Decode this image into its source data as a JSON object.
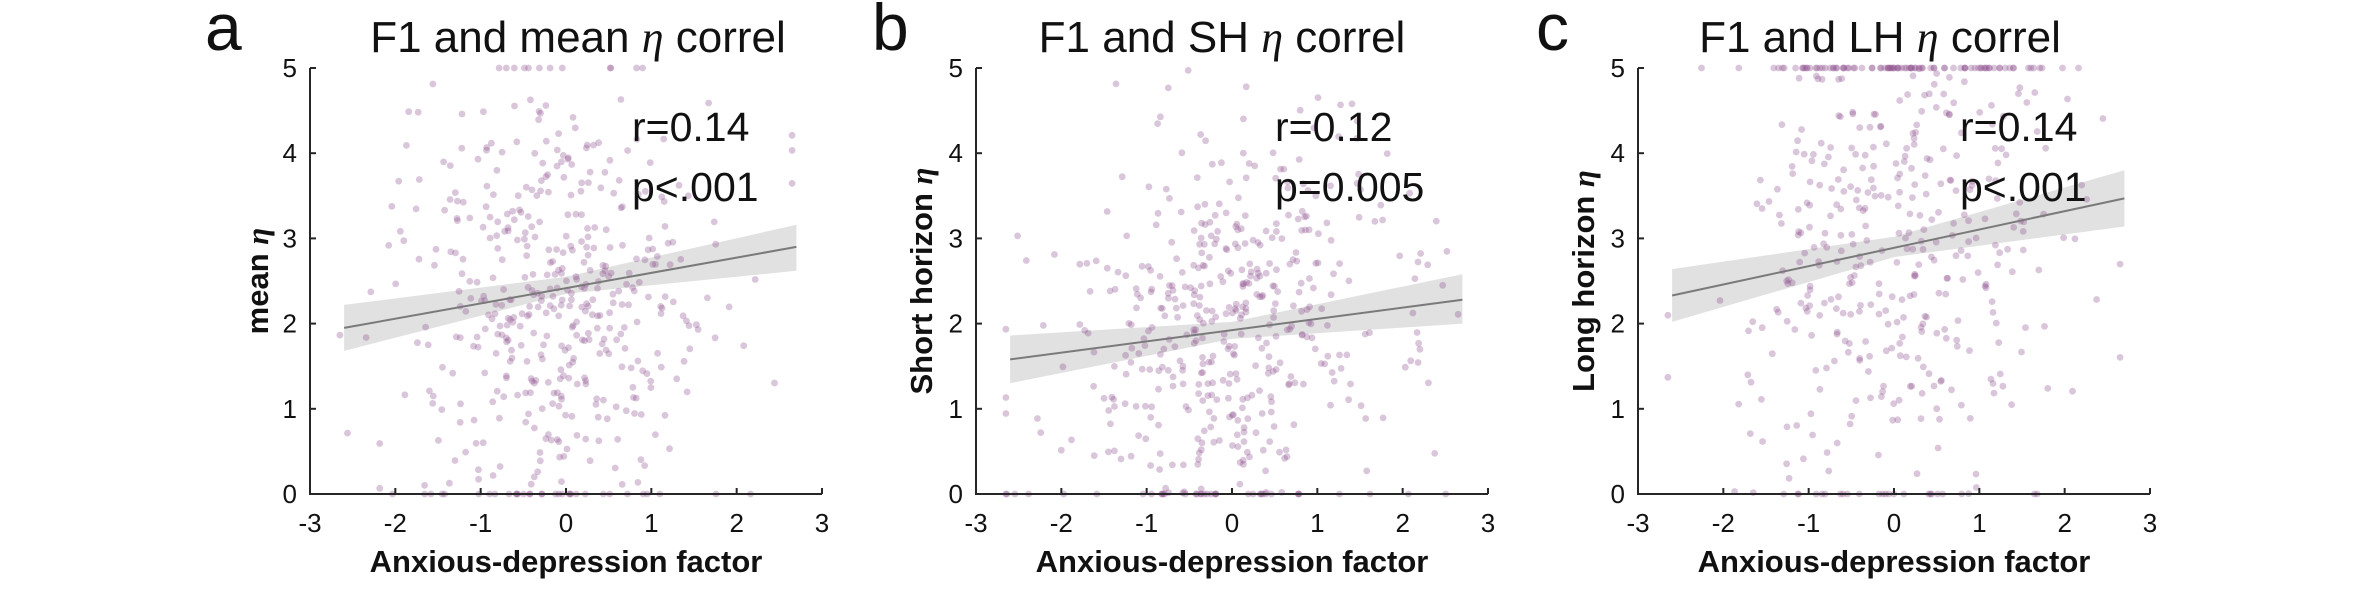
{
  "panels": [
    {
      "letter": "a",
      "title_prefix": "F1 and mean ",
      "title_symbol": "η",
      "title_suffix": " correl",
      "ylabel_prefix": "mean ",
      "ylabel_symbol": "η",
      "xlabel": "Anxious-depression factor",
      "stat_r": "r=0.14",
      "stat_p": "p<.001",
      "xticks": [
        "-3",
        "-2",
        "-1",
        "0",
        "1",
        "2",
        "3"
      ],
      "yticks": [
        "0",
        "1",
        "2",
        "3",
        "4",
        "5"
      ]
    },
    {
      "letter": "b",
      "title_prefix": "F1 and SH ",
      "title_symbol": "η",
      "title_suffix": " correl",
      "ylabel_prefix": "Short horizon ",
      "ylabel_symbol": "η",
      "xlabel": "Anxious-depression factor",
      "stat_r": "r=0.12",
      "stat_p": "p=0.005",
      "xticks": [
        "-3",
        "-2",
        "-1",
        "0",
        "1",
        "2",
        "3"
      ],
      "yticks": [
        "0",
        "1",
        "2",
        "3",
        "4",
        "5"
      ]
    },
    {
      "letter": "c",
      "title_prefix": "F1 and LH ",
      "title_symbol": "η",
      "title_suffix": " correl",
      "ylabel_prefix": "Long horizon ",
      "ylabel_symbol": "η",
      "xlabel": "Anxious-depression factor",
      "stat_r": "r=0.14",
      "stat_p": "p<.001",
      "xticks": [
        "-3",
        "-2",
        "-1",
        "0",
        "1",
        "2",
        "3"
      ],
      "yticks": [
        "0",
        "1",
        "2",
        "3",
        "4",
        "5"
      ]
    }
  ],
  "chart_data": [
    {
      "type": "scatter",
      "title": "F1 and mean η correl",
      "xlabel": "Anxious-depression factor",
      "ylabel": "mean η",
      "xlim": [
        -3,
        3
      ],
      "ylim": [
        0,
        5
      ],
      "grid": false,
      "point_color": "#8b4f8b",
      "band_color": "#c8c8c8",
      "line_color": "#7a7a7a",
      "r": 0.14,
      "p": "<.001",
      "fit": {
        "x": [
          -2.6,
          2.7
        ],
        "y": [
          1.95,
          2.9
        ]
      },
      "ci": {
        "x": [
          -2.6,
          0.0,
          2.7
        ],
        "lower": [
          1.68,
          2.35,
          2.62
        ],
        "upper": [
          2.22,
          2.55,
          3.16
        ]
      },
      "distribution": {
        "mode": "continuous",
        "x_mean": 0.0,
        "x_sd": 0.95,
        "y_sd": 1.25
      },
      "n_points": 480,
      "seed": 11
    },
    {
      "type": "scatter",
      "title": "F1 and SH η correl",
      "xlabel": "Anxious-depression factor",
      "ylabel": "Short horizon η",
      "xlim": [
        -3,
        3
      ],
      "ylim": [
        0,
        5
      ],
      "grid": false,
      "point_color": "#8b4f8b",
      "band_color": "#c8c8c8",
      "line_color": "#7a7a7a",
      "r": 0.12,
      "p": "=0.005",
      "fit": {
        "x": [
          -2.6,
          2.7
        ],
        "y": [
          1.58,
          2.28
        ]
      },
      "ci": {
        "x": [
          -2.6,
          0.0,
          2.7
        ],
        "lower": [
          1.3,
          1.82,
          2.0
        ],
        "upper": [
          1.86,
          2.02,
          2.58
        ]
      },
      "distribution": {
        "mode": "continuous",
        "x_mean": 0.0,
        "x_sd": 0.95,
        "y_sd": 1.2
      },
      "n_points": 480,
      "seed": 23
    },
    {
      "type": "scatter",
      "title": "F1 and LH η correl",
      "xlabel": "Anxious-depression factor",
      "ylabel": "Long horizon η",
      "xlim": [
        -3,
        3
      ],
      "ylim": [
        0,
        5
      ],
      "grid": false,
      "point_color": "#8b4f8b",
      "band_color": "#c8c8c8",
      "line_color": "#7a7a7a",
      "r": 0.14,
      "p": "<.001",
      "fit": {
        "x": [
          -2.6,
          2.7
        ],
        "y": [
          2.33,
          3.47
        ]
      },
      "ci": {
        "x": [
          -2.6,
          0.0,
          2.7
        ],
        "lower": [
          2.02,
          2.78,
          3.14
        ],
        "upper": [
          2.64,
          3.02,
          3.8
        ]
      },
      "distribution": {
        "mode": "ceiling",
        "x_mean": 0.0,
        "x_sd": 0.95,
        "y_sd": 1.5,
        "ceiling_fraction": 0.13,
        "floor_fraction": 0.06
      },
      "n_points": 480,
      "seed": 37
    }
  ]
}
